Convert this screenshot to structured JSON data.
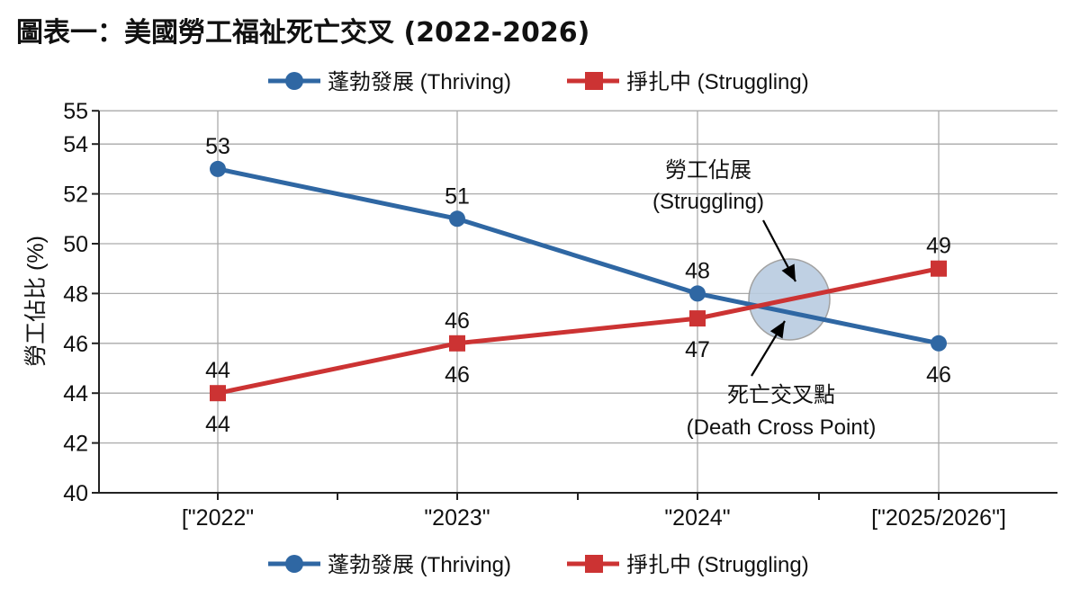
{
  "chart_data": {
    "type": "line",
    "title": "圖表一：美國勞工福祉死亡交叉 (2022-2026)",
    "xlabel": "",
    "ylabel": "勞工佔比 (%)",
    "ylim": [
      40,
      55
    ],
    "yticks": [
      40,
      42,
      44,
      46,
      48,
      50,
      52,
      54,
      55
    ],
    "categories": [
      "[\"2022\"",
      "\"2023\"",
      "\"2024\"",
      "[\"2025/2026\"]"
    ],
    "grid": true,
    "legend_placement": "top-center and bottom-center",
    "series": [
      {
        "name": "蓬勃發展 (Thriving)",
        "color": "#2f67a3",
        "marker": "circle",
        "values": [
          53,
          51,
          48,
          46
        ],
        "labels_position": "above"
      },
      {
        "name": "掙扎中 (Struggling)",
        "color": "#cc3333",
        "marker": "square",
        "values": [
          44,
          46,
          47,
          49
        ]
      }
    ],
    "data_labels": [
      {
        "text": "53",
        "category": 0,
        "value": 53,
        "pos": "above"
      },
      {
        "text": "51",
        "category": 1,
        "value": 51,
        "pos": "above"
      },
      {
        "text": "48",
        "category": 2,
        "value": 48,
        "pos": "above"
      },
      {
        "text": "46",
        "category": 3,
        "value": 46,
        "pos": "below"
      },
      {
        "text": "44",
        "category": 0,
        "value": 44,
        "pos": "above"
      },
      {
        "text": "44",
        "category": 0,
        "value": 44,
        "pos": "below"
      },
      {
        "text": "46",
        "category": 1,
        "value": 46,
        "pos": "above"
      },
      {
        "text": "46",
        "category": 1,
        "value": 46,
        "pos": "below"
      },
      {
        "text": "47",
        "category": 2,
        "value": 47,
        "pos": "below"
      },
      {
        "text": "49",
        "category": 3,
        "value": 49,
        "pos": "above"
      }
    ],
    "annotations": {
      "upper_line1": "勞工佔展",
      "upper_line2": "(Struggling)",
      "lower_line1": "死亡交叉點",
      "lower_line2": "(Death Cross Point)",
      "highlight_color": "#b9cce0"
    }
  }
}
